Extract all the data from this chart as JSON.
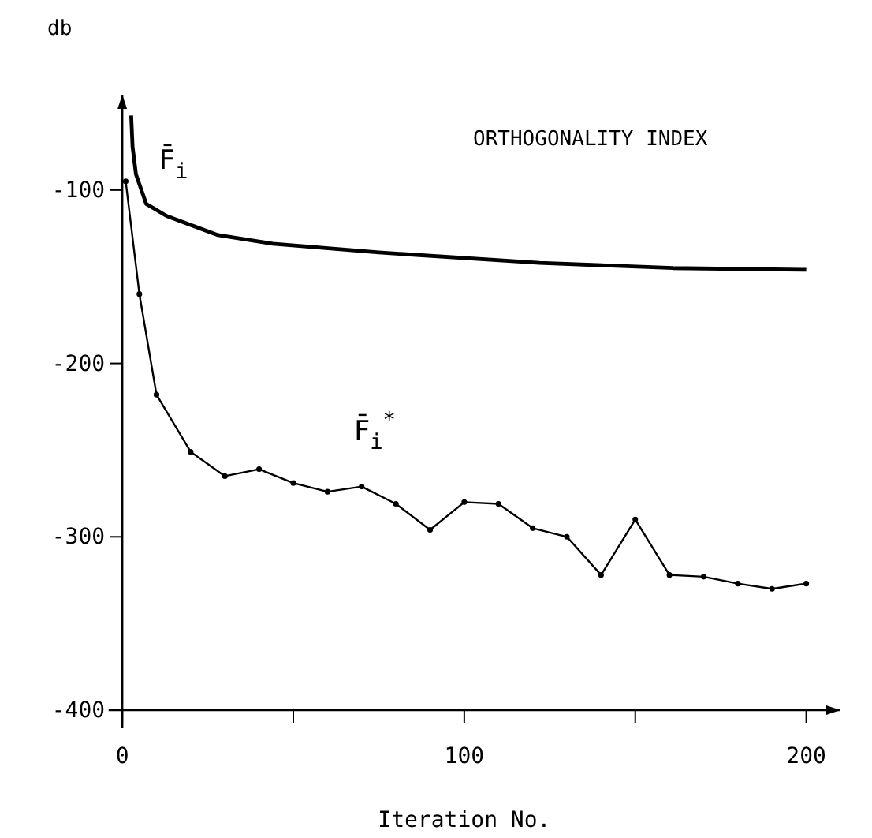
{
  "chart_data": {
    "type": "line",
    "title": "ORTHOGONALITY INDEX",
    "xlabel": "Iteration No.",
    "ylabel": "db",
    "xlim": [
      -4,
      210
    ],
    "ylim": [
      -410,
      -45
    ],
    "xticks": [
      0,
      {
        "value": 50,
        "label": null
      },
      100,
      {
        "value": 150,
        "label": null
      },
      200
    ],
    "yticks": [
      -100,
      -200,
      -300,
      -400
    ],
    "grid": false,
    "series": [
      {
        "name": "F̄$_{i}$",
        "color": "#000000",
        "marker": "none",
        "x": [
          2.6,
          3,
          4,
          7,
          13,
          28,
          44,
          75,
          122,
          161,
          200
        ],
        "values": [
          -57,
          -75,
          -91,
          -108,
          -115,
          -126,
          -131,
          -136,
          -142,
          -145,
          -146
        ]
      },
      {
        "name": "F̄$_{i}$$^{*}$",
        "color": "#000000",
        "marker": "circle",
        "x": [
          1,
          5,
          10,
          20,
          30,
          40,
          50,
          60,
          70,
          80,
          90,
          100,
          110,
          120,
          130,
          140,
          150,
          160,
          170,
          180,
          190,
          200
        ],
        "values": [
          -95,
          -160,
          -218,
          -251,
          -265,
          -261,
          -269,
          -274,
          -271,
          -281,
          -296,
          -280,
          -281,
          -295,
          -300,
          -322,
          -290,
          -322,
          -323,
          -327,
          -330,
          -327
        ]
      }
    ]
  }
}
